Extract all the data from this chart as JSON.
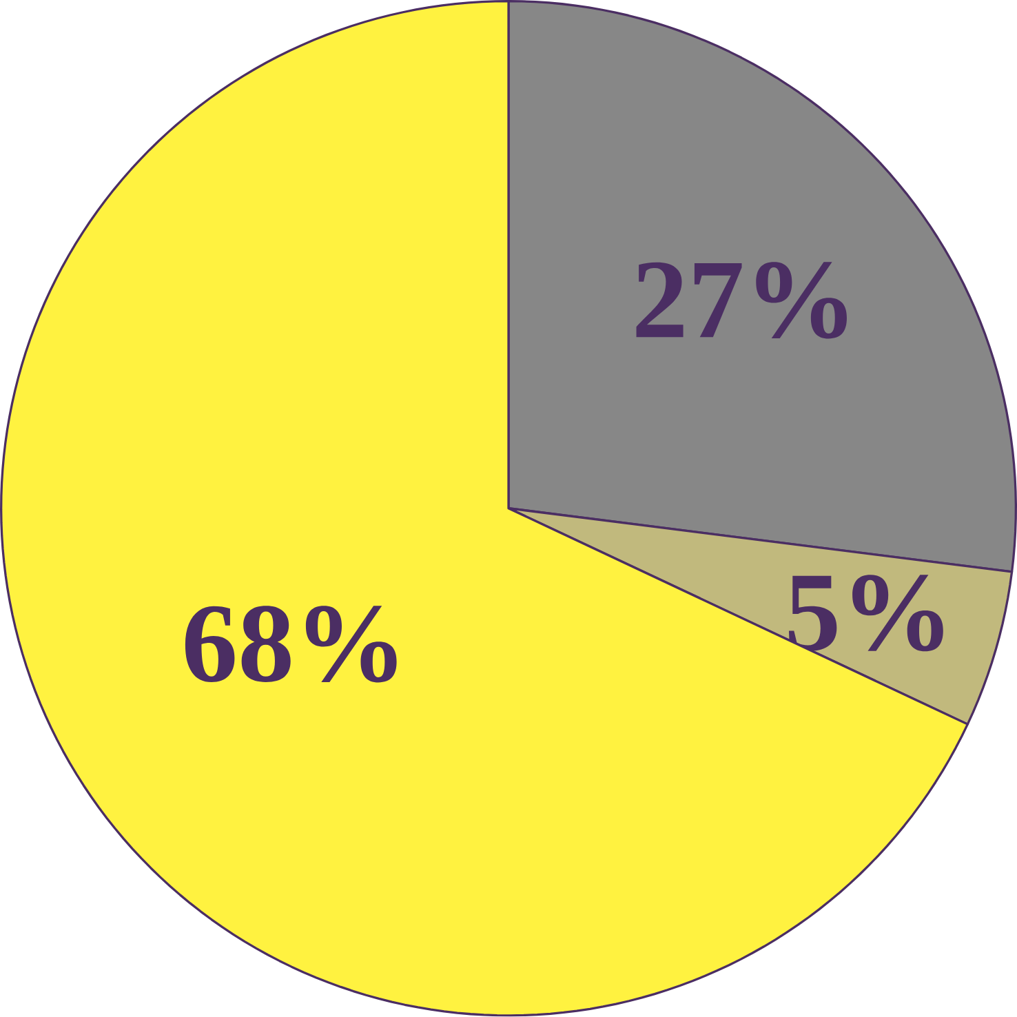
{
  "chart_data": {
    "type": "pie",
    "categories": [
      null,
      null,
      null
    ],
    "values": [
      27,
      5,
      68
    ],
    "colors": [
      "#878787",
      "#c1b97d",
      "#fff240"
    ],
    "value_labels": [
      "27%",
      "5%",
      "68%"
    ]
  }
}
